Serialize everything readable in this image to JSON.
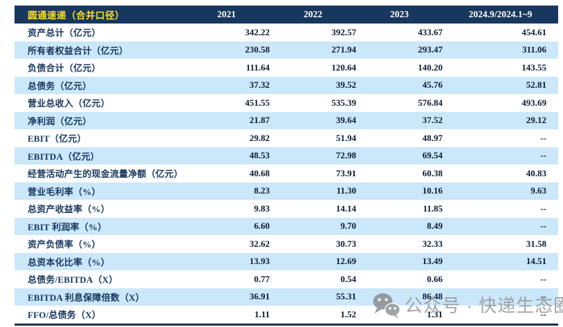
{
  "table": {
    "title": "圆通速递（合并口径）",
    "columns": [
      "2021",
      "2022",
      "2023",
      "2024.9/2024.1~9"
    ],
    "rows": [
      {
        "label": "资产总计（亿元）",
        "values": [
          "342.22",
          "392.57",
          "433.67",
          "454.61"
        ]
      },
      {
        "label": "所有者权益合计（亿元）",
        "values": [
          "230.58",
          "271.94",
          "293.47",
          "311.06"
        ]
      },
      {
        "label": "负债合计（亿元）",
        "values": [
          "111.64",
          "120.64",
          "140.20",
          "143.55"
        ]
      },
      {
        "label": "总债务（亿元）",
        "values": [
          "37.32",
          "39.52",
          "45.76",
          "52.81"
        ]
      },
      {
        "label": "营业总收入（亿元）",
        "values": [
          "451.55",
          "535.39",
          "576.84",
          "493.69"
        ]
      },
      {
        "label": "净利润（亿元）",
        "values": [
          "21.87",
          "39.64",
          "37.52",
          "29.12"
        ]
      },
      {
        "label": "EBIT（亿元）",
        "values": [
          "29.82",
          "51.94",
          "48.97",
          "--"
        ]
      },
      {
        "label": "EBITDA（亿元）",
        "values": [
          "48.53",
          "72.98",
          "69.54",
          "--"
        ]
      },
      {
        "label": "经营活动产生的现金流量净额（亿元）",
        "values": [
          "40.68",
          "73.91",
          "60.38",
          "40.83"
        ]
      },
      {
        "label": "营业毛利率（%）",
        "values": [
          "8.23",
          "11.30",
          "10.16",
          "9.63"
        ]
      },
      {
        "label": "总资产收益率（%）",
        "values": [
          "9.83",
          "14.14",
          "11.85",
          "--"
        ]
      },
      {
        "label": "EBIT 利润率（%）",
        "values": [
          "6.60",
          "9.70",
          "8.49",
          "--"
        ]
      },
      {
        "label": "资产负债率（%）",
        "values": [
          "32.62",
          "30.73",
          "32.33",
          "31.58"
        ]
      },
      {
        "label": "总资本化比率（%）",
        "values": [
          "13.93",
          "12.69",
          "13.49",
          "14.51"
        ]
      },
      {
        "label": "总债务/EBITDA（X）",
        "values": [
          "0.77",
          "0.54",
          "0.66",
          "--"
        ]
      },
      {
        "label": "EBITDA 利息保障倍数（X）",
        "values": [
          "36.91",
          "55.31",
          "86.48",
          "--"
        ]
      },
      {
        "label": "FFO/总债务（X）",
        "values": [
          "1.11",
          "1.52",
          "1.31",
          "--"
        ]
      }
    ]
  },
  "watermark": {
    "icon": "wechat-icon",
    "text": "公众号 · 快递生态圈"
  },
  "colors": {
    "header_bg": "#17375E",
    "header_title_text": "#FFE11A",
    "header_year_text": "#FFFFFF",
    "row_alt_bg": "#CBE7FA",
    "label_text": "#17375E",
    "value_text": "#0B1C33",
    "bottom_border": "#14304F",
    "watermark_gray": "#94979B"
  }
}
